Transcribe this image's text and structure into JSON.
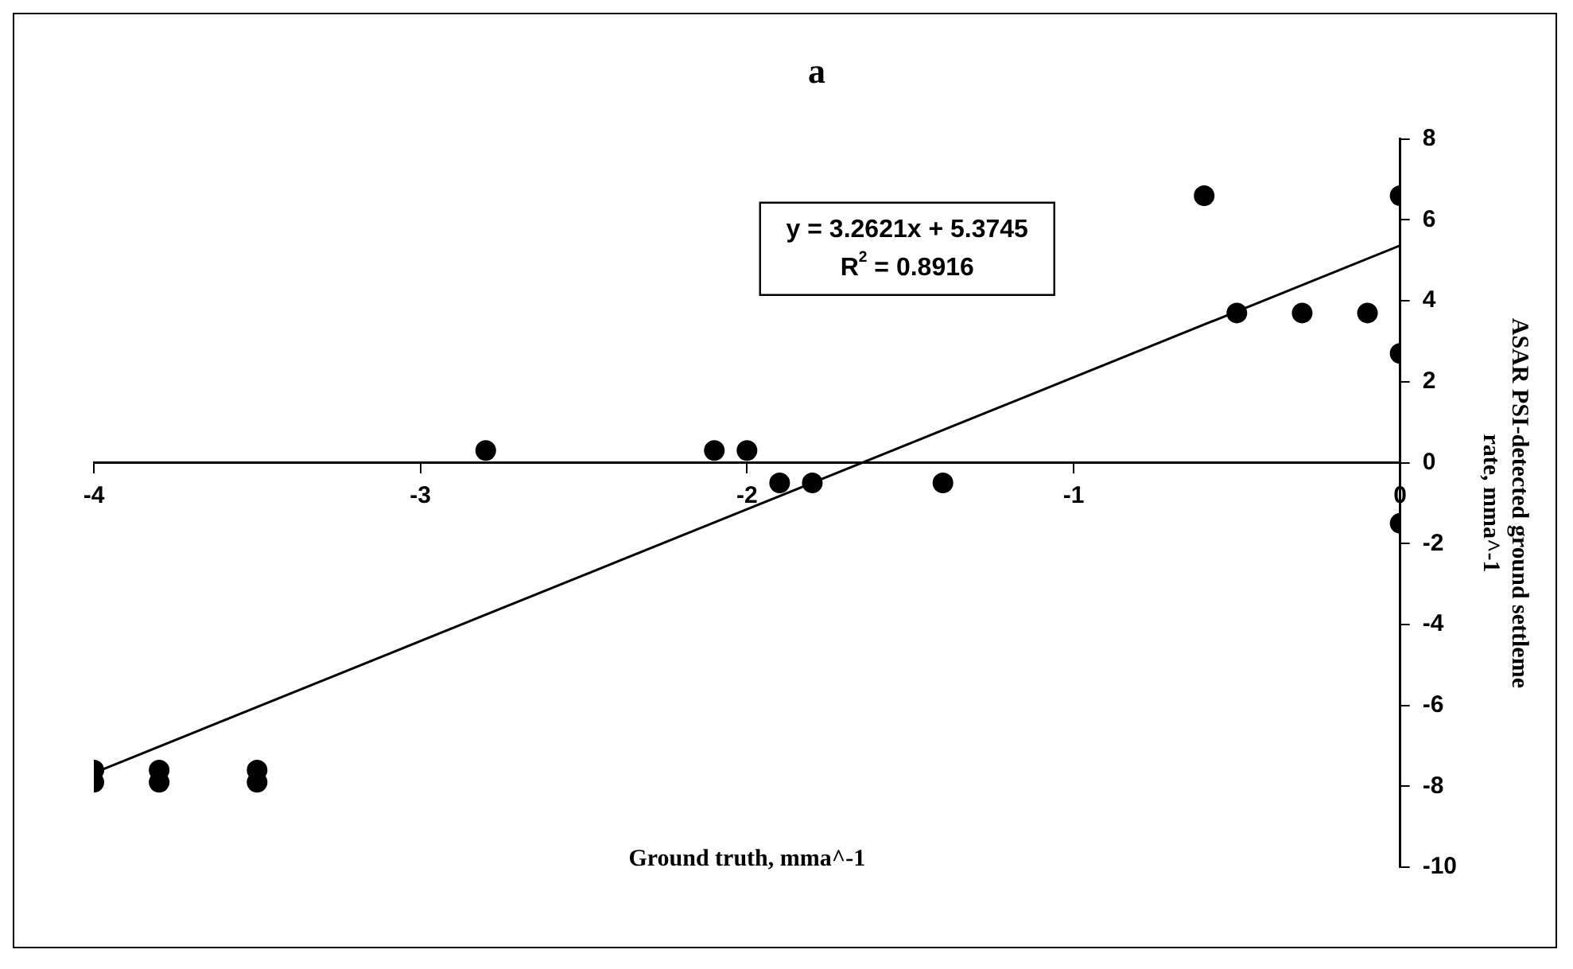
{
  "chart_data": {
    "type": "scatter",
    "title": "a",
    "xlabel": "Ground truth, mma^-1",
    "ylabel": "ASAR PSI-detected ground settleme rate, mma^-1",
    "series": [
      {
        "type": "scatter",
        "color": "#000000",
        "x": [
          -4,
          -4,
          -3.8,
          -3.8,
          -3.5,
          -3.5,
          -2.8,
          -2.1,
          -2.0,
          -1.9,
          -1.8,
          -1.4,
          -0.6,
          -0.5,
          -0.3,
          -0.1,
          0,
          0,
          0
        ],
        "values": [
          -7.6,
          -7.9,
          -7.6,
          -7.9,
          -7.6,
          -7.9,
          0.3,
          0.3,
          0.3,
          -0.5,
          -0.5,
          -0.5,
          6.6,
          3.7,
          3.7,
          3.7,
          6.6,
          2.7,
          -1.5
        ]
      },
      {
        "type": "line",
        "color": "#000000",
        "marker": "none",
        "x": [
          -4,
          0
        ],
        "values": [
          -7.67,
          5.37
        ]
      }
    ],
    "xlim": [
      -4,
      0
    ],
    "xticks": [
      -4,
      -3,
      -2,
      -1,
      0
    ],
    "ylim": [
      -10,
      8
    ],
    "yticks": [
      -10,
      -8,
      -6,
      -4,
      -2,
      0,
      2,
      4,
      6,
      8
    ],
    "annotations": [
      "y = 3.2621x + 5.3745",
      "R$^{2}$ = 0.8916"
    ],
    "grid": false,
    "legend": false,
    "marker": "circle",
    "line_style": "solid"
  }
}
